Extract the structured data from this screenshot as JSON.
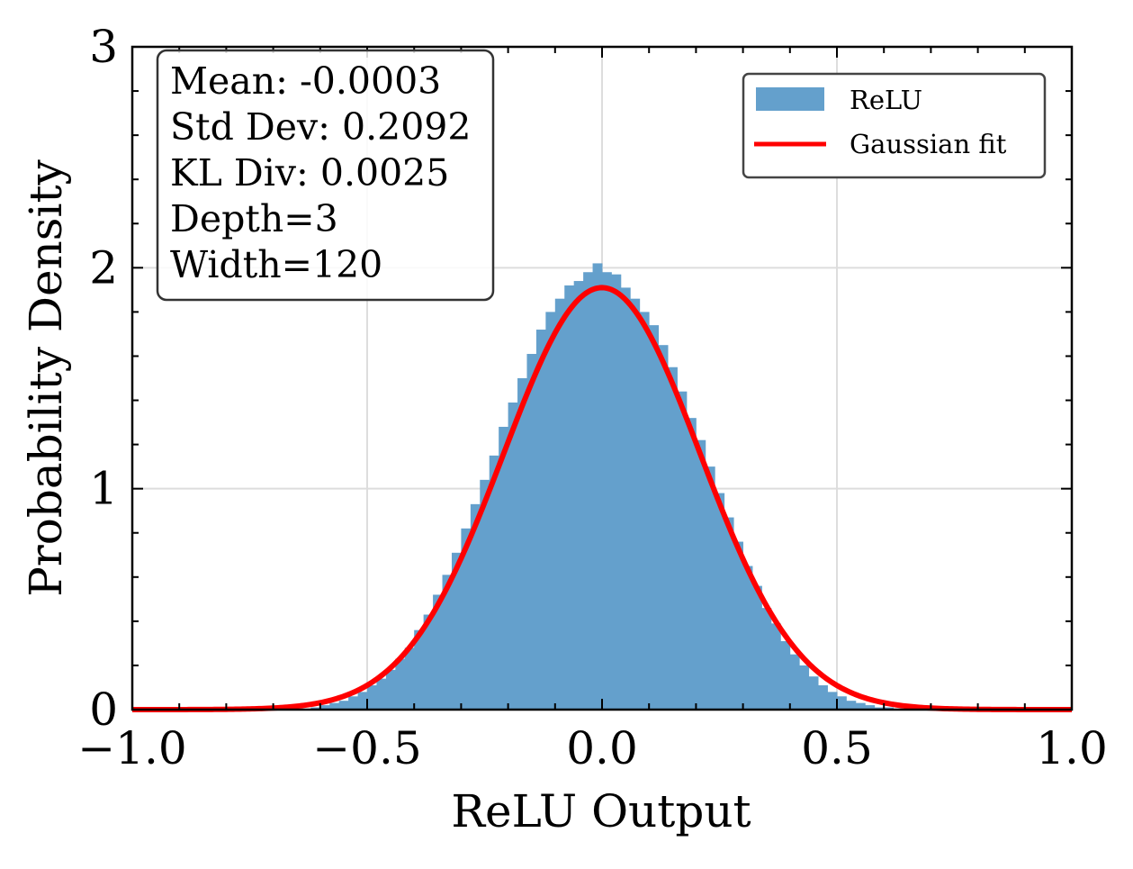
{
  "chart_data": {
    "type": "bar",
    "subtype": "histogram-with-fit",
    "xlabel": "ReLU Output",
    "ylabel": "Probability Density",
    "xlim": [
      -1.0,
      1.0
    ],
    "ylim": [
      0,
      3
    ],
    "x_ticks": [
      -1.0,
      -0.5,
      0.0,
      0.5,
      1.0
    ],
    "x_tick_labels": [
      "−1.0",
      "−0.5",
      "0.0",
      "0.5",
      "1.0"
    ],
    "y_ticks": [
      0,
      1,
      2,
      3
    ],
    "y_tick_labels": [
      "0",
      "1",
      "2",
      "3"
    ],
    "grid": true,
    "legend": {
      "placement": "top-right",
      "entries": [
        {
          "label": "ReLU",
          "kind": "patch",
          "color": "#64a0cc"
        },
        {
          "label": "Gaussian fit",
          "kind": "line",
          "color": "#ff0000"
        }
      ]
    },
    "stats_box": {
      "placement": "top-left",
      "lines": [
        "Mean: -0.0003",
        "Std Dev: 0.2092",
        "KL Div: 0.0025",
        "Depth=3",
        "Width=120"
      ]
    },
    "histogram": {
      "name": "ReLU",
      "color": "#64a0cc",
      "bin_width": 0.02,
      "bin_starts": [
        -0.62,
        -0.6,
        -0.58,
        -0.56,
        -0.54,
        -0.52,
        -0.5,
        -0.48,
        -0.46,
        -0.44,
        -0.42,
        -0.4,
        -0.38,
        -0.36,
        -0.34,
        -0.32,
        -0.3,
        -0.28,
        -0.26,
        -0.24,
        -0.22,
        -0.2,
        -0.18,
        -0.16,
        -0.14,
        -0.12,
        -0.1,
        -0.08,
        -0.06,
        -0.04,
        -0.02,
        0.0,
        0.02,
        0.04,
        0.06,
        0.08,
        0.1,
        0.12,
        0.14,
        0.16,
        0.18,
        0.2,
        0.22,
        0.24,
        0.26,
        0.28,
        0.3,
        0.32,
        0.34,
        0.36,
        0.38,
        0.4,
        0.42,
        0.44,
        0.46,
        0.48,
        0.5,
        0.52,
        0.54,
        0.56,
        0.58,
        0.6
      ],
      "densities": [
        0.01,
        0.02,
        0.03,
        0.04,
        0.06,
        0.08,
        0.11,
        0.14,
        0.18,
        0.23,
        0.28,
        0.36,
        0.43,
        0.52,
        0.61,
        0.71,
        0.82,
        0.93,
        1.04,
        1.15,
        1.28,
        1.39,
        1.5,
        1.61,
        1.72,
        1.8,
        1.86,
        1.92,
        1.94,
        1.98,
        2.02,
        1.98,
        1.97,
        1.91,
        1.86,
        1.8,
        1.74,
        1.65,
        1.55,
        1.44,
        1.32,
        1.22,
        1.1,
        0.98,
        0.87,
        0.76,
        0.65,
        0.56,
        0.46,
        0.39,
        0.31,
        0.25,
        0.2,
        0.15,
        0.11,
        0.08,
        0.06,
        0.04,
        0.03,
        0.02,
        0.01,
        0.01
      ]
    },
    "fit": {
      "name": "Gaussian fit",
      "color": "#ff0000",
      "mean": -0.0003,
      "std": 0.2092,
      "peak_density": 1.91,
      "x_range": [
        -1.0,
        1.0
      ]
    }
  }
}
